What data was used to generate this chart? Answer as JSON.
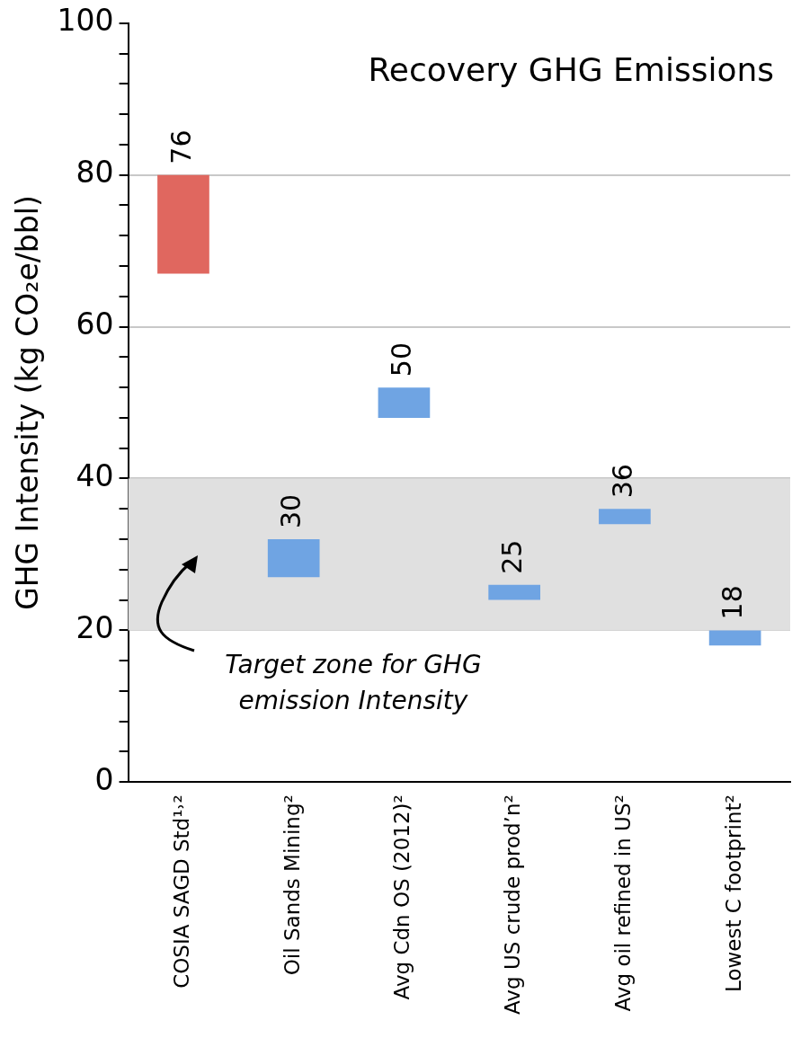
{
  "chart_data": {
    "type": "bar",
    "title": "Recovery GHG Emissions",
    "ylabel": "GHG Intensity (kg CO₂e/bbl)",
    "categories": [
      "COSIA SAGD Std¹˒²",
      "Oil Sands Mining²",
      "Avg Cdn OS (2012)²",
      "Avg US crude prod’n²",
      "Avg oil refined in US²",
      "Lowest C footprint²"
    ],
    "base": [
      67,
      27,
      48,
      24,
      34,
      18
    ],
    "values": [
      13,
      5,
      4,
      2,
      2,
      2
    ],
    "annotations": [
      {
        "text": "76",
        "x": "COSIA SAGD Std¹˒²",
        "y": 80
      },
      {
        "text": "30",
        "x": "Oil Sands Mining²",
        "y": 32
      },
      {
        "text": "50",
        "x": "Avg Cdn OS (2012)²",
        "y": 52
      },
      {
        "text": "25",
        "x": "Avg US crude prod’n²",
        "y": 26
      },
      {
        "text": "36",
        "x": "Avg oil refined in US²",
        "y": 36
      },
      {
        "text": "18",
        "x": "Lowest C footprint²",
        "y": 20
      }
    ],
    "colors": [
      "#e0675f",
      "#6fa4e3",
      "#6fa4e3",
      "#6fa4e3",
      "#6fa4e3",
      "#6fa4e3"
    ],
    "ylim": [
      0,
      100
    ],
    "yticks": [
      0,
      {
        "value": 4,
        "label": null
      },
      {
        "value": 8,
        "label": null
      },
      {
        "value": 12,
        "label": null
      },
      {
        "value": 16,
        "label": null
      },
      20,
      {
        "value": 24,
        "label": null
      },
      {
        "value": 28,
        "label": null
      },
      {
        "value": 32,
        "label": null
      },
      {
        "value": 36,
        "label": null
      },
      40,
      {
        "value": 44,
        "label": null
      },
      {
        "value": 48,
        "label": null
      },
      {
        "value": 52,
        "label": null
      },
      {
        "value": 56,
        "label": null
      },
      60,
      {
        "value": 64,
        "label": null
      },
      {
        "value": 68,
        "label": null
      },
      {
        "value": 72,
        "label": null
      },
      {
        "value": 76,
        "label": null
      },
      80,
      {
        "value": 84,
        "label": null
      },
      {
        "value": 88,
        "label": null
      },
      {
        "value": 92,
        "label": null
      },
      {
        "value": 96,
        "label": null
      },
      100
    ],
    "grid": "y",
    "bands": [
      {
        "axis": "y",
        "from": 20,
        "to": 40,
        "label": "Target zone for GHG emission Intensity",
        "color": "#e0e0e0"
      }
    ],
    "legend": false
  }
}
